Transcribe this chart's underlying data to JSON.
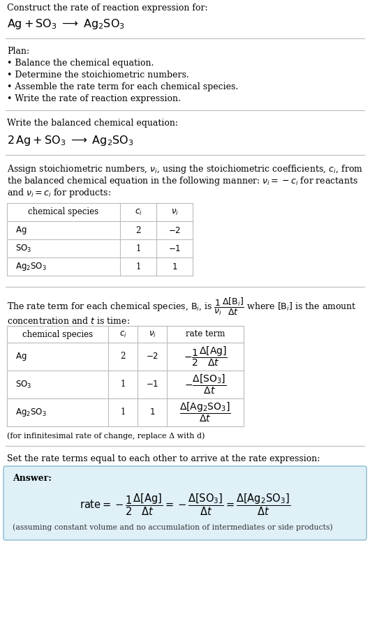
{
  "title_text": "Construct the rate of reaction expression for:",
  "plan_header": "Plan:",
  "plan_items": [
    "• Balance the chemical equation.",
    "• Determine the stoichiometric numbers.",
    "• Assemble the rate term for each chemical species.",
    "• Write the rate of reaction expression."
  ],
  "balanced_header": "Write the balanced chemical equation:",
  "stoich_intro_lines": [
    "Assign stoichiometric numbers, $\\nu_i$, using the stoichiometric coefficients, $c_i$, from",
    "the balanced chemical equation in the following manner: $\\nu_i = -c_i$ for reactants",
    "and $\\nu_i = c_i$ for products:"
  ],
  "table1_species": [
    "$\\mathrm{Ag}$",
    "$\\mathrm{SO_3}$",
    "$\\mathrm{Ag_2SO_3}$"
  ],
  "table1_ci": [
    "2",
    "1",
    "1"
  ],
  "table1_vi": [
    "$-2$",
    "$-1$",
    "$1$"
  ],
  "rate_intro_line1": "The rate term for each chemical species, $\\mathrm{B}_i$, is $\\dfrac{1}{\\nu_i}\\dfrac{\\Delta[\\mathrm{B}_i]}{\\Delta t}$ where $[\\mathrm{B}_i]$ is the amount",
  "rate_intro_line2": "concentration and $t$ is time:",
  "table2_species": [
    "$\\mathrm{Ag}$",
    "$\\mathrm{SO_3}$",
    "$\\mathrm{Ag_2SO_3}$"
  ],
  "table2_ci": [
    "2",
    "1",
    "1"
  ],
  "table2_vi": [
    "$-2$",
    "$-1$",
    "$1$"
  ],
  "table2_rate": [
    "$-\\dfrac{1}{2}\\dfrac{\\Delta[\\mathrm{Ag}]}{\\Delta t}$",
    "$-\\dfrac{\\Delta[\\mathrm{SO_3}]}{\\Delta t}$",
    "$\\dfrac{\\Delta[\\mathrm{Ag_2SO_3}]}{\\Delta t}$"
  ],
  "infinitesimal_note": "(for infinitesimal rate of change, replace Δ with d)",
  "set_rate_text": "Set the rate terms equal to each other to arrive at the rate expression:",
  "answer_label": "Answer:",
  "answer_box_color": "#dff0f7",
  "answer_box_border": "#88bbcc",
  "assuming_note": "(assuming constant volume and no accumulation of intermediates or side products)",
  "bg_color": "#ffffff",
  "text_color": "#000000",
  "sep_color": "#bbbbbb"
}
